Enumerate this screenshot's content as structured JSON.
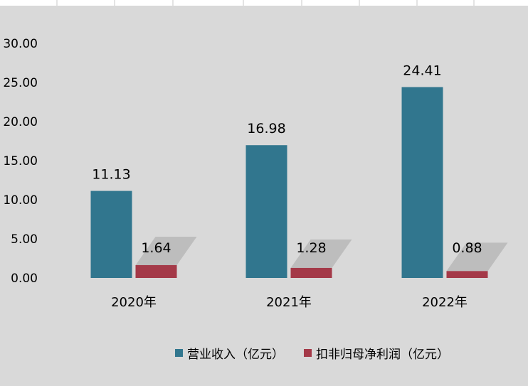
{
  "chart_data": {
    "type": "bar",
    "categories": [
      "2020年",
      "2021年",
      "2022年"
    ],
    "series": [
      {
        "name": "营业收入（亿元）",
        "values": [
          11.13,
          16.98,
          24.41
        ],
        "color": "#31768e",
        "labels": [
          "11.13",
          "16.98",
          "24.41"
        ]
      },
      {
        "name": "扣非归母净利润（亿元）",
        "values": [
          1.64,
          1.28,
          0.88
        ],
        "color": "#a43948",
        "labels": [
          "1.64",
          "1.28",
          "0.88"
        ]
      }
    ],
    "y_ticks": [
      "0.00",
      "5.00",
      "10.00",
      "15.00",
      "20.00",
      "25.00",
      "30.00"
    ],
    "ylim": [
      0,
      30
    ],
    "grid": false,
    "legend_position": "bottom"
  }
}
